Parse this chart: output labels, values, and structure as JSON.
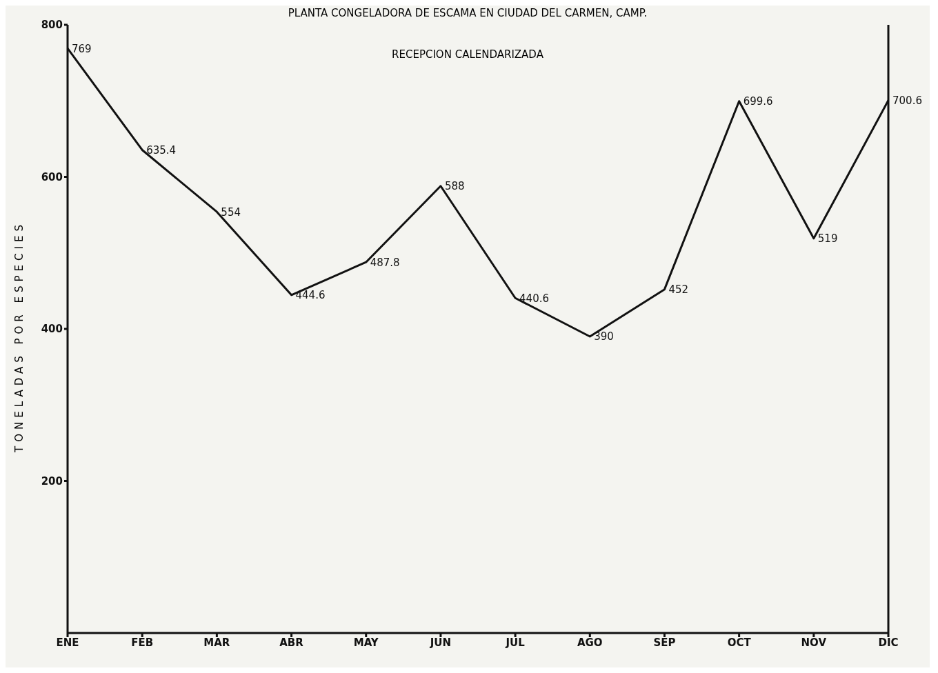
{
  "chart_data": {
    "type": "line",
    "title": "PLANTA CONGELADORA DE ESCAMA  EN CIUDAD DEL CARMEN, CAMP.",
    "subtitle": "RECEPCION CALENDARIZADA",
    "ylabel": "TONELADAS POR ESPECIES",
    "categories": [
      "ENE",
      "FEB",
      "MAR",
      "ABR",
      "MAY",
      "JUN",
      "JUL",
      "AGO",
      "SEP",
      "OCT",
      "NOV",
      "DIC"
    ],
    "series": [
      {
        "color": "#111111",
        "values": [
          769,
          635.4,
          554,
          444.6,
          487.8,
          588,
          440.6,
          390,
          452,
          699.6,
          519,
          700.6
        ]
      }
    ],
    "ylim": [
      0,
      800
    ],
    "yticks": [
      200,
      400,
      600,
      800
    ],
    "data_labels": true,
    "marker": "none",
    "line_style": "solid",
    "grid": false,
    "legend": false
  }
}
